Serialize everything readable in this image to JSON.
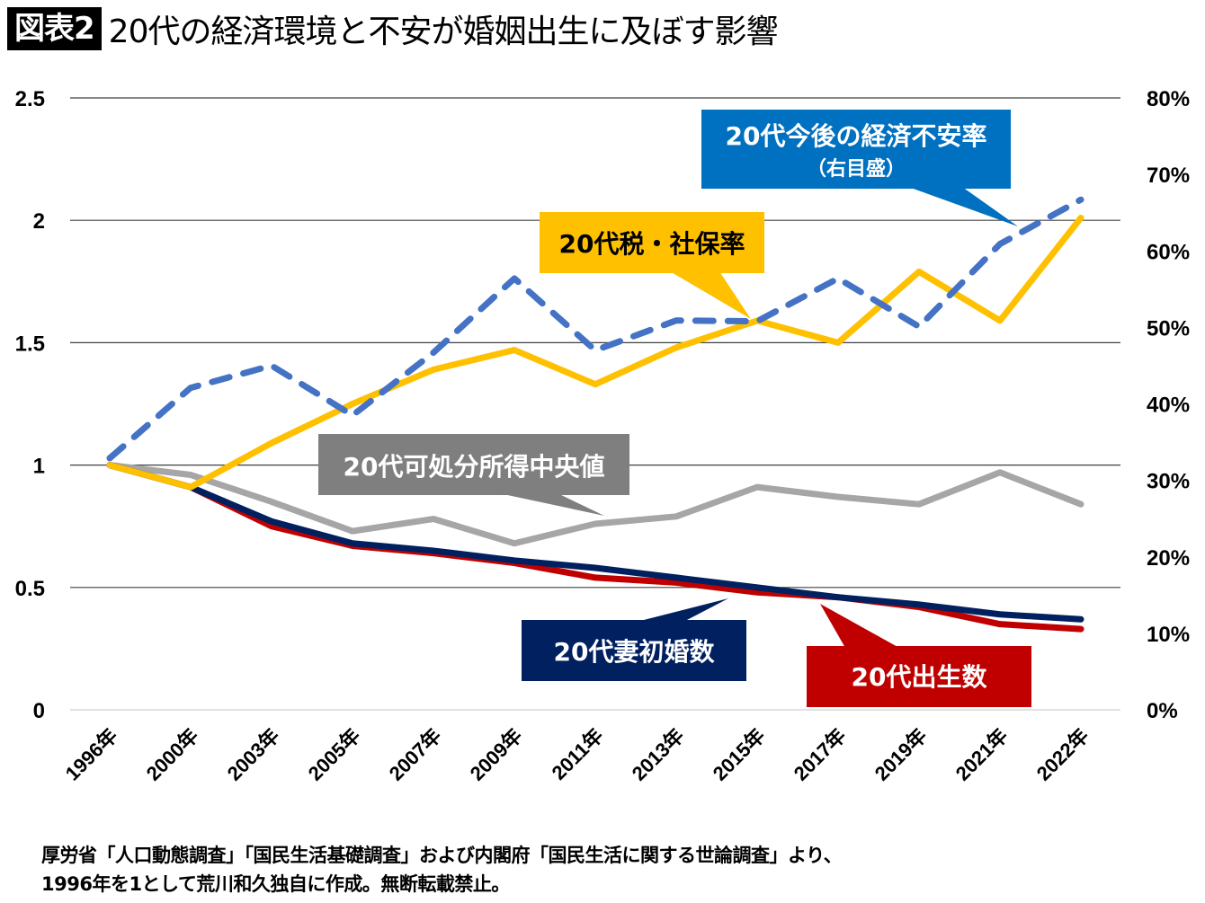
{
  "title": {
    "badge": "図表2",
    "text": "20代の経済環境と不安が婚姻出生に及ぼす影響"
  },
  "footer": {
    "line1": "厚労省「人口動態調査」「国民生活基礎調査」および内閣府「国民生活に関する世論調査」より、",
    "line2": "1996年を1として荒川和久独自に作成。無断転載禁止。"
  },
  "colors": {
    "tax_social": "#FFC000",
    "anxiety": "#4472C4",
    "anxiety_callout": "#0070C0",
    "income": "#A6A6A6",
    "income_callout": "#7F7F7F",
    "marriage": "#002060",
    "births": "#C00000",
    "grid": "#000000"
  },
  "chart_data": {
    "type": "line",
    "title": "20代の経済環境と不安が婚姻出生に及ぼす影響",
    "xlabel": "",
    "ylabel": "",
    "categories": [
      "1996年",
      "2000年",
      "2003年",
      "2005年",
      "2007年",
      "2009年",
      "2011年",
      "2013年",
      "2015年",
      "2017年",
      "2019年",
      "2021年",
      "2022年"
    ],
    "y_left": {
      "ylim": [
        0,
        2.5
      ],
      "ticks": [
        "0",
        "0.5",
        "1",
        "1.5",
        "2",
        "2.5"
      ],
      "tick_values": [
        0,
        0.5,
        1,
        1.5,
        2,
        2.5
      ]
    },
    "y_right": {
      "ylim": [
        0,
        80
      ],
      "ticks": [
        "0%",
        "10%",
        "20%",
        "30%",
        "40%",
        "50%",
        "60%",
        "70%",
        "80%"
      ],
      "tick_values": [
        0,
        10,
        20,
        30,
        40,
        50,
        60,
        70,
        80
      ]
    },
    "grid": true,
    "legend": "callouts",
    "series": [
      {
        "key": "tax_social",
        "name": "20代税・社保率",
        "axis": "left",
        "style": "solid",
        "values": [
          1.0,
          0.91,
          1.09,
          1.25,
          1.39,
          1.47,
          1.33,
          1.48,
          1.59,
          1.5,
          1.79,
          1.59,
          2.01
        ]
      },
      {
        "key": "anxiety",
        "name": "20代今後の経済不安率",
        "name_sub": "（右目盛）",
        "axis": "right",
        "style": "dashed",
        "values": [
          32.9,
          42.1,
          45.0,
          38.5,
          46.7,
          56.4,
          47.0,
          50.9,
          50.8,
          56.4,
          50.1,
          60.9,
          66.7
        ]
      },
      {
        "key": "income",
        "name": "20代可処分所得中央値",
        "axis": "left",
        "style": "solid",
        "values": [
          1.0,
          0.96,
          0.85,
          0.73,
          0.78,
          0.68,
          0.76,
          0.79,
          0.91,
          0.87,
          0.84,
          0.97,
          0.84
        ]
      },
      {
        "key": "births",
        "name": "20代出生数",
        "axis": "left",
        "style": "solid",
        "values": [
          1.0,
          0.91,
          0.75,
          0.67,
          0.64,
          0.6,
          0.54,
          0.52,
          0.48,
          0.46,
          0.42,
          0.35,
          0.33
        ]
      },
      {
        "key": "marriage",
        "name": "20代妻初婚数",
        "axis": "left",
        "style": "solid",
        "values": [
          1.0,
          0.91,
          0.77,
          0.68,
          0.65,
          0.61,
          0.58,
          0.54,
          0.5,
          0.46,
          0.43,
          0.39,
          0.37
        ]
      }
    ],
    "annotations": [
      {
        "series": "anxiety",
        "text": "20代今後の経済不安率",
        "subtext": "（右目盛）",
        "text_color": "#FFFFFF",
        "bg": "#0070C0"
      },
      {
        "series": "tax_social",
        "text": "20代税・社保率",
        "text_color": "#000000",
        "bg": "#FFC000"
      },
      {
        "series": "income",
        "text": "20代可処分所得中央値",
        "text_color": "#FFFFFF",
        "bg": "#7F7F7F"
      },
      {
        "series": "marriage",
        "text": "20代妻初婚数",
        "text_color": "#FFFFFF",
        "bg": "#002060"
      },
      {
        "series": "births",
        "text": "20代出生数",
        "text_color": "#FFFFFF",
        "bg": "#C00000"
      }
    ]
  }
}
